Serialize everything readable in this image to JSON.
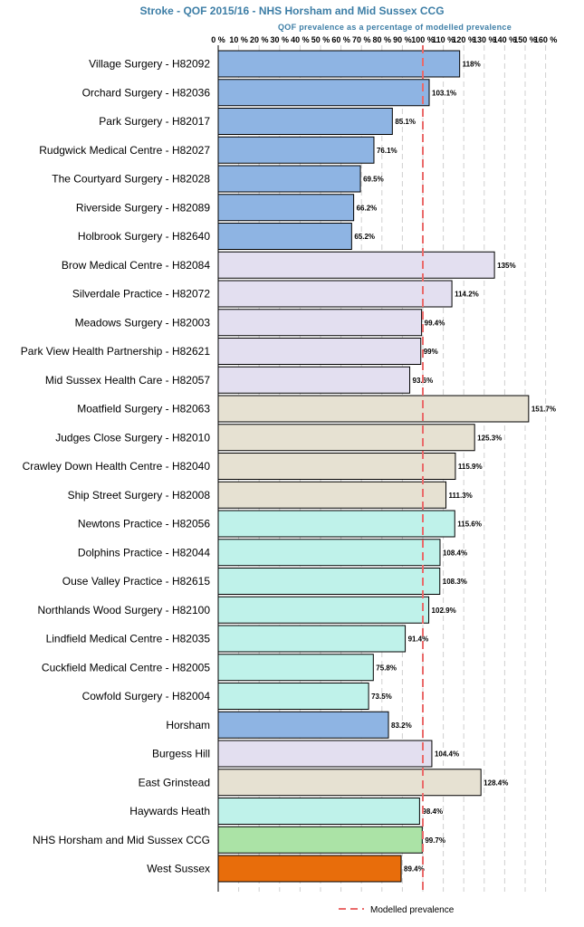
{
  "title": "Stroke - QOF 2015/16  - NHS Horsham and Mid Sussex CCG",
  "subtitle": "QOF prevalence as a percentage of modelled prevalence",
  "colors": {
    "horsham": "#8eb4e3",
    "burgess_hill": "#e3dff0",
    "east_grinstead": "#e6e1d2",
    "haywards_heath": "#bff2ea",
    "ccg": "#abe3a6",
    "west_sussex": "#e86d0b",
    "reference_line": "#ea6a6a",
    "gridline": "#d0d0d0"
  },
  "legend": {
    "label": "Modelled prevalence"
  },
  "chart_data": {
    "type": "bar",
    "orientation": "horizontal",
    "title": "Stroke - QOF 2015/16  - NHS Horsham and Mid Sussex CCG",
    "xlabel": "QOF prevalence as a percentage of modelled prevalence",
    "xlim": [
      0,
      160
    ],
    "x_ticks": [
      0,
      10,
      20,
      30,
      40,
      50,
      60,
      70,
      80,
      90,
      100,
      110,
      120,
      130,
      140,
      150,
      160
    ],
    "x_tick_labels": [
      "0 %",
      "10 %",
      "20 %",
      "30 %",
      "40 %",
      "50 %",
      "60 %",
      "70 %",
      "80 %",
      "90 %",
      "100 %",
      "110 %",
      "120 %",
      "130 %",
      "140 %",
      "150 %",
      "160 %"
    ],
    "reference_line": {
      "name": "Modelled prevalence",
      "value": 100
    },
    "grid": "vertical dashed",
    "legend_position": "bottom",
    "categories": [
      "Village Surgery - H82092",
      "Orchard Surgery - H82036",
      "Park Surgery - H82017",
      "Rudgwick Medical Centre - H82027",
      "The Courtyard Surgery - H82028",
      "Riverside Surgery - H82089",
      "Holbrook Surgery - H82640",
      "Brow Medical Centre - H82084",
      "Silverdale Practice - H82072",
      "Meadows Surgery - H82003",
      "Park View Health Partnership - H82621",
      "Mid Sussex Health Care - H82057",
      "Moatfield Surgery - H82063",
      "Judges Close Surgery - H82010",
      "Crawley Down Health Centre - H82040",
      "Ship Street Surgery - H82008",
      "Newtons Practice - H82056",
      "Dolphins Practice - H82044",
      "Ouse Valley Practice - H82615",
      "Northlands Wood Surgery - H82100",
      "Lindfield Medical Centre - H82035",
      "Cuckfield Medical Centre - H82005",
      "Cowfold Surgery - H82004",
      "Horsham",
      "Burgess Hill",
      "East Grinstead",
      "Haywards Heath",
      "NHS Horsham and Mid Sussex CCG",
      "West Sussex"
    ],
    "values": [
      118,
      103.1,
      85.1,
      76.1,
      69.5,
      66.2,
      65.2,
      135,
      114.2,
      99.4,
      99,
      93.6,
      151.7,
      125.3,
      115.9,
      111.3,
      115.6,
      108.4,
      108.3,
      102.9,
      91.4,
      75.8,
      73.5,
      83.2,
      104.4,
      128.4,
      98.4,
      99.7,
      89.4
    ],
    "value_labels": [
      "118%",
      "103.1%",
      "85.1%",
      "76.1%",
      "69.5%",
      "66.2%",
      "65.2%",
      "135%",
      "114.2%",
      "99.4%",
      "99%",
      "93.6%",
      "151.7%",
      "125.3%",
      "115.9%",
      "111.3%",
      "115.6%",
      "108.4%",
      "108.3%",
      "102.9%",
      "91.4%",
      "75.8%",
      "73.5%",
      "83.2%",
      "104.4%",
      "128.4%",
      "98.4%",
      "99.7%",
      "89.4%"
    ],
    "bar_groups": [
      "horsham",
      "horsham",
      "horsham",
      "horsham",
      "horsham",
      "horsham",
      "horsham",
      "burgess_hill",
      "burgess_hill",
      "burgess_hill",
      "burgess_hill",
      "burgess_hill",
      "east_grinstead",
      "east_grinstead",
      "east_grinstead",
      "east_grinstead",
      "haywards_heath",
      "haywards_heath",
      "haywards_heath",
      "haywards_heath",
      "haywards_heath",
      "haywards_heath",
      "haywards_heath",
      "horsham",
      "burgess_hill",
      "east_grinstead",
      "haywards_heath",
      "ccg",
      "west_sussex"
    ]
  }
}
